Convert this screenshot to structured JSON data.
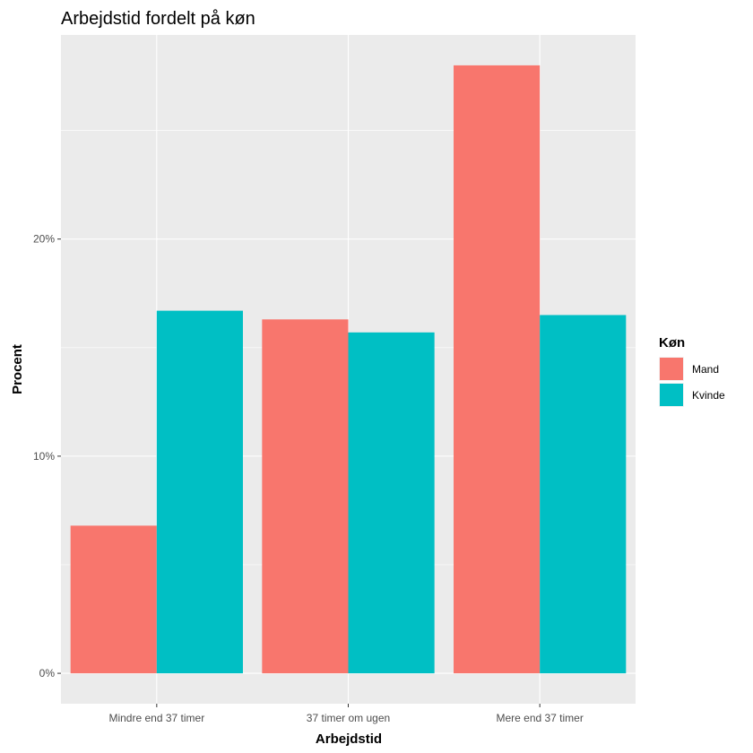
{
  "chart_data": {
    "type": "bar",
    "title": "Arbejdstid fordelt på køn",
    "xlabel": "Arbejdstid",
    "ylabel": "Procent",
    "categories": [
      "Mindre end 37 timer",
      "37 timer om ugen",
      "Mere end 37 timer"
    ],
    "series": [
      {
        "name": "Mand",
        "color": "#F8766D",
        "values": [
          6.8,
          16.3,
          28.0
        ]
      },
      {
        "name": "Kvinde",
        "color": "#00BFC4",
        "values": [
          16.7,
          15.7,
          16.5
        ]
      }
    ],
    "ylim": [
      -1.4,
      29.4
    ],
    "yticks": [
      0,
      10,
      20
    ],
    "ytick_labels": [
      "0%",
      "10%",
      "20%"
    ],
    "legend": {
      "title": "Køn",
      "position": "right"
    },
    "grid": true,
    "panel_background": "#EBEBEB"
  }
}
